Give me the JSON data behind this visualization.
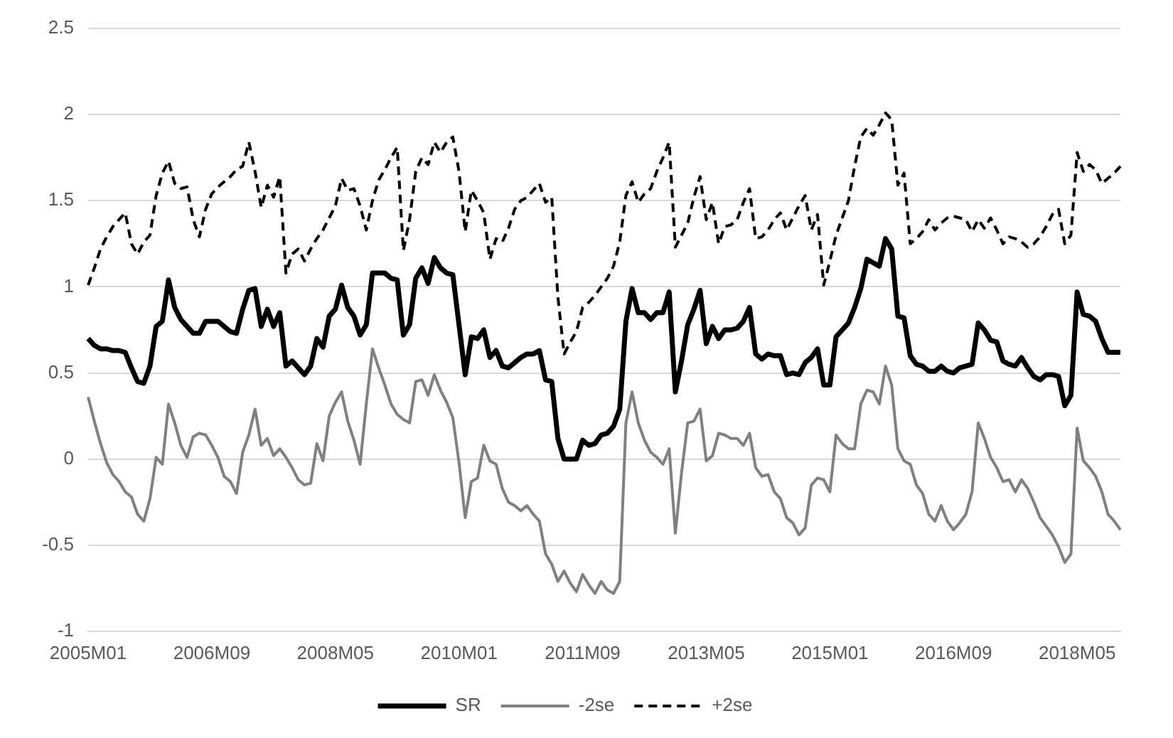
{
  "chart_data": {
    "type": "line",
    "categories": [
      "2005M01",
      null,
      null,
      null,
      null,
      null,
      null,
      null,
      null,
      null,
      null,
      null,
      null,
      null,
      null,
      null,
      null,
      null,
      null,
      null,
      "2006M09",
      null,
      null,
      null,
      null,
      null,
      null,
      null,
      null,
      null,
      null,
      null,
      null,
      null,
      null,
      null,
      null,
      null,
      null,
      null,
      "2008M05",
      null,
      null,
      null,
      null,
      null,
      null,
      null,
      null,
      null,
      null,
      null,
      null,
      null,
      null,
      null,
      null,
      null,
      null,
      null,
      "2010M01",
      null,
      null,
      null,
      null,
      null,
      null,
      null,
      null,
      null,
      null,
      null,
      null,
      null,
      null,
      null,
      null,
      null,
      null,
      null,
      "2011M09",
      null,
      null,
      null,
      null,
      null,
      null,
      null,
      null,
      null,
      null,
      null,
      null,
      null,
      null,
      null,
      null,
      null,
      null,
      null,
      "2013M05",
      null,
      null,
      null,
      null,
      null,
      null,
      null,
      null,
      null,
      null,
      null,
      null,
      null,
      null,
      null,
      null,
      null,
      null,
      null,
      "2015M01",
      null,
      null,
      null,
      null,
      null,
      null,
      null,
      null,
      null,
      null,
      null,
      null,
      null,
      null,
      null,
      null,
      null,
      null,
      null,
      "2016M09",
      null,
      null,
      null,
      null,
      null,
      null,
      null,
      null,
      null,
      null,
      null,
      null,
      null,
      null,
      null,
      null,
      null,
      null,
      null,
      "2018M05",
      null,
      null,
      null,
      null,
      null,
      null,
      null
    ],
    "series": [
      {
        "name": "SR",
        "color": "#000000",
        "line_style": "solid",
        "values": [
          0.7,
          0.66,
          0.64,
          0.64,
          0.63,
          0.63,
          0.62,
          0.53,
          0.45,
          0.44,
          0.54,
          0.77,
          0.8,
          1.04,
          0.88,
          0.81,
          0.77,
          0.73,
          0.73,
          0.8,
          0.8,
          0.8,
          0.77,
          0.74,
          0.73,
          0.87,
          0.98,
          0.99,
          0.77,
          0.87,
          0.77,
          0.85,
          0.54,
          0.57,
          0.53,
          0.49,
          0.54,
          0.7,
          0.65,
          0.83,
          0.87,
          1.01,
          0.88,
          0.83,
          0.72,
          0.78,
          1.08,
          1.08,
          1.08,
          1.05,
          1.04,
          0.72,
          0.78,
          1.05,
          1.11,
          1.02,
          1.17,
          1.11,
          1.08,
          1.07,
          0.78,
          0.49,
          0.71,
          0.7,
          0.75,
          0.59,
          0.63,
          0.54,
          0.53,
          0.56,
          0.59,
          0.61,
          0.61,
          0.63,
          0.46,
          0.45,
          0.12,
          0,
          0,
          0,
          0.11,
          0.08,
          0.09,
          0.14,
          0.15,
          0.19,
          0.29,
          0.8,
          0.99,
          0.85,
          0.85,
          0.81,
          0.85,
          0.85,
          0.97,
          0.39,
          0.57,
          0.78,
          0.87,
          0.98,
          0.67,
          0.77,
          0.7,
          0.75,
          0.75,
          0.76,
          0.8,
          0.88,
          0.61,
          0.58,
          0.61,
          0.6,
          0.6,
          0.49,
          0.5,
          0.49,
          0.56,
          0.59,
          0.64,
          0.43,
          0.43,
          0.71,
          0.75,
          0.79,
          0.88,
          0.99,
          1.16,
          1.14,
          1.12,
          1.28,
          1.22,
          0.83,
          0.82,
          0.6,
          0.55,
          0.54,
          0.51,
          0.51,
          0.54,
          0.51,
          0.5,
          0.53,
          0.54,
          0.55,
          0.79,
          0.75,
          0.69,
          0.68,
          0.57,
          0.55,
          0.54,
          0.59,
          0.53,
          0.48,
          0.46,
          0.49,
          0.49,
          0.48,
          0.31,
          0.37,
          0.97,
          0.84,
          0.83,
          0.8,
          0.7,
          0.62,
          0.62,
          0.62
        ]
      },
      {
        "name": "-2se",
        "color": "#808080",
        "line_style": "solid",
        "values": [
          0.36,
          0.22,
          0.09,
          -0.02,
          -0.09,
          -0.13,
          -0.19,
          -0.22,
          -0.32,
          -0.36,
          -0.23,
          0.01,
          -0.03,
          0.32,
          0.21,
          0.08,
          0.01,
          0.13,
          0.15,
          0.14,
          0.08,
          0.01,
          -0.1,
          -0.13,
          -0.2,
          0.04,
          0.14,
          0.29,
          0.08,
          0.12,
          0.02,
          0.06,
          0.01,
          -0.05,
          -0.12,
          -0.15,
          -0.14,
          0.09,
          -0.01,
          0.25,
          0.33,
          0.39,
          0.22,
          0.11,
          -0.03,
          0.32,
          0.64,
          0.53,
          0.43,
          0.32,
          0.26,
          0.23,
          0.21,
          0.45,
          0.46,
          0.37,
          0.49,
          0.4,
          0.33,
          0.24,
          -0.02,
          -0.34,
          -0.13,
          -0.11,
          0.08,
          -0.01,
          -0.03,
          -0.17,
          -0.25,
          -0.27,
          -0.3,
          -0.27,
          -0.32,
          -0.36,
          -0.55,
          -0.61,
          -0.71,
          -0.65,
          -0.72,
          -0.77,
          -0.67,
          -0.73,
          -0.78,
          -0.71,
          -0.76,
          -0.78,
          -0.71,
          0.21,
          0.39,
          0.21,
          0.11,
          0.04,
          0.01,
          -0.03,
          0.06,
          -0.43,
          -0.08,
          0.21,
          0.22,
          0.29,
          -0.01,
          0.02,
          0.15,
          0.14,
          0.12,
          0.12,
          0.08,
          0.15,
          -0.05,
          -0.1,
          -0.09,
          -0.19,
          -0.23,
          -0.34,
          -0.37,
          -0.44,
          -0.4,
          -0.15,
          -0.11,
          -0.12,
          -0.19,
          0.14,
          0.09,
          0.06,
          0.06,
          0.32,
          0.4,
          0.39,
          0.32,
          0.54,
          0.43,
          0.06,
          -0.01,
          -0.03,
          -0.15,
          -0.2,
          -0.32,
          -0.36,
          -0.27,
          -0.36,
          -0.41,
          -0.37,
          -0.32,
          -0.19,
          0.21,
          0.12,
          0.01,
          -0.05,
          -0.13,
          -0.12,
          -0.19,
          -0.12,
          -0.17,
          -0.25,
          -0.34,
          -0.39,
          -0.44,
          -0.51,
          -0.6,
          -0.55,
          0.18,
          -0.01,
          -0.05,
          -0.1,
          -0.19,
          -0.32,
          -0.36,
          -0.41
        ]
      },
      {
        "name": "+2se",
        "color": "#000000",
        "line_style": "dashed",
        "values": [
          1.01,
          1.11,
          1.22,
          1.29,
          1.35,
          1.39,
          1.43,
          1.25,
          1.19,
          1.26,
          1.3,
          1.53,
          1.66,
          1.73,
          1.6,
          1.57,
          1.58,
          1.39,
          1.29,
          1.45,
          1.54,
          1.58,
          1.61,
          1.64,
          1.68,
          1.7,
          1.84,
          1.67,
          1.46,
          1.59,
          1.52,
          1.64,
          1.08,
          1.19,
          1.22,
          1.15,
          1.22,
          1.28,
          1.33,
          1.4,
          1.47,
          1.63,
          1.56,
          1.57,
          1.47,
          1.33,
          1.5,
          1.62,
          1.68,
          1.75,
          1.81,
          1.21,
          1.39,
          1.67,
          1.75,
          1.71,
          1.84,
          1.78,
          1.84,
          1.87,
          1.67,
          1.32,
          1.56,
          1.5,
          1.43,
          1.16,
          1.28,
          1.26,
          1.34,
          1.45,
          1.5,
          1.52,
          1.56,
          1.6,
          1.49,
          1.52,
          0.94,
          0.61,
          0.68,
          0.74,
          0.88,
          0.91,
          0.95,
          1.0,
          1.05,
          1.12,
          1.26,
          1.53,
          1.61,
          1.49,
          1.54,
          1.57,
          1.67,
          1.75,
          1.84,
          1.23,
          1.3,
          1.37,
          1.52,
          1.64,
          1.39,
          1.49,
          1.25,
          1.35,
          1.36,
          1.39,
          1.49,
          1.57,
          1.28,
          1.29,
          1.33,
          1.39,
          1.43,
          1.33,
          1.4,
          1.47,
          1.53,
          1.33,
          1.42,
          1.01,
          1.15,
          1.3,
          1.4,
          1.5,
          1.7,
          1.87,
          1.92,
          1.88,
          1.94,
          2.01,
          1.97,
          1.59,
          1.66,
          1.25,
          1.28,
          1.32,
          1.39,
          1.33,
          1.37,
          1.4,
          1.41,
          1.4,
          1.39,
          1.32,
          1.39,
          1.34,
          1.4,
          1.33,
          1.25,
          1.29,
          1.28,
          1.26,
          1.23,
          1.25,
          1.29,
          1.35,
          1.42,
          1.45,
          1.25,
          1.3,
          1.78,
          1.67,
          1.71,
          1.68,
          1.6,
          1.63,
          1.66,
          1.7
        ]
      }
    ],
    "ylim": [
      -1,
      2.5
    ],
    "yticks": [
      -1,
      -0.5,
      0,
      0.5,
      1,
      1.5,
      2,
      2.5
    ],
    "grid": "y",
    "legend": "bottom",
    "marker": "none"
  }
}
